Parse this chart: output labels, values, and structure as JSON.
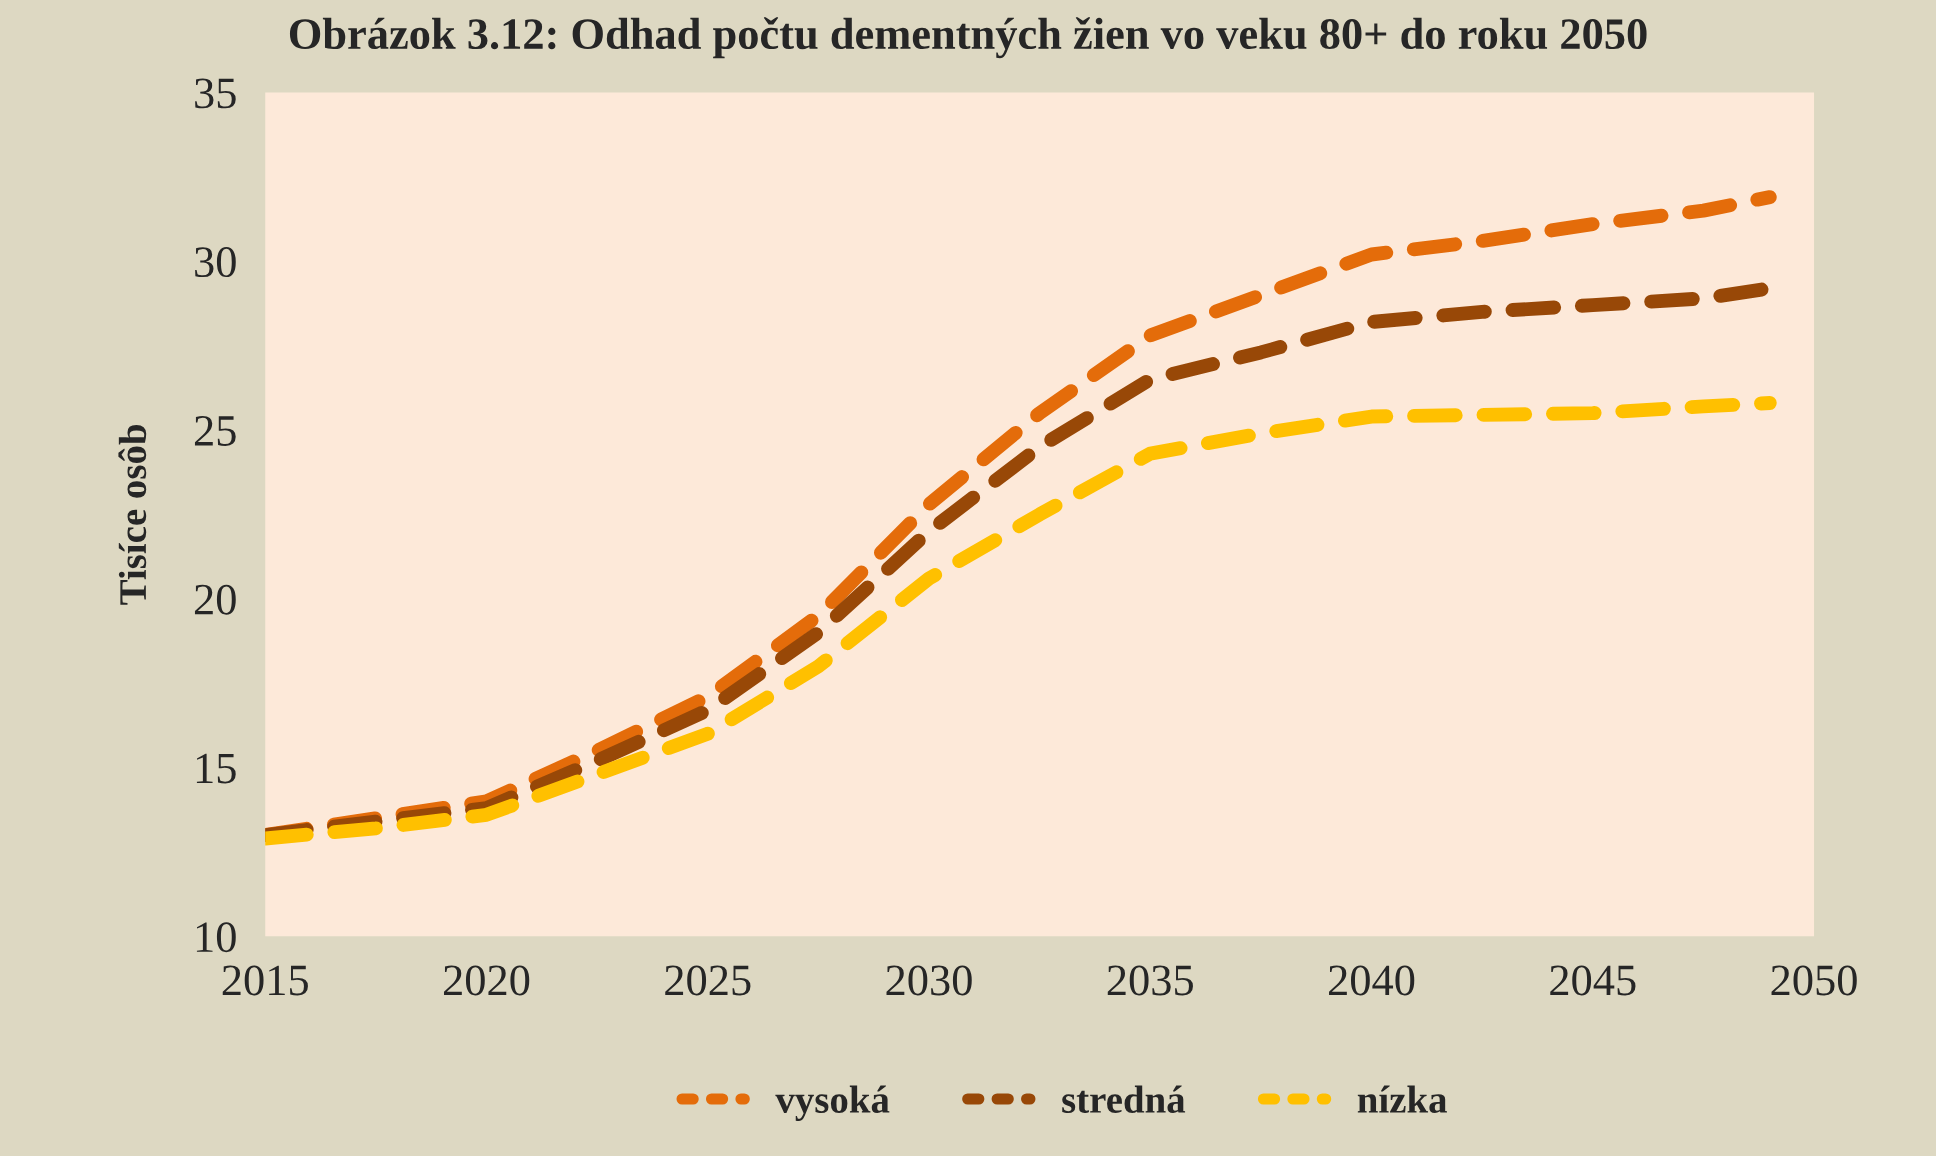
{
  "chart_data": {
    "type": "line",
    "title": "Obrázok 3.12: Odhad počtu dementných žien vo veku 80+ do roku 2050",
    "ylabel": "Tisíce osôb",
    "x": [
      2015,
      2017.5,
      2020,
      2022.5,
      2025,
      2027.5,
      2030,
      2032.5,
      2035,
      2037.5,
      2040,
      2042.5,
      2045,
      2047.5,
      2049
    ],
    "series": [
      {
        "name": "vysoká",
        "color": "#e46c0a",
        "values": [
          13.0,
          13.5,
          14.0,
          15.5,
          17.1,
          19.5,
          22.8,
          25.5,
          27.8,
          29.0,
          30.2,
          30.6,
          31.1,
          31.5,
          31.9
        ]
      },
      {
        "name": "stredná",
        "color": "#984807",
        "values": [
          13.0,
          13.4,
          13.8,
          15.2,
          16.7,
          19.0,
          22.0,
          24.5,
          26.5,
          27.3,
          28.2,
          28.5,
          28.7,
          28.9,
          29.2
        ]
      },
      {
        "name": "nízka",
        "color": "#ffc000",
        "values": [
          12.9,
          13.2,
          13.6,
          14.8,
          16.0,
          18.0,
          20.6,
          22.5,
          24.3,
          24.9,
          25.4,
          25.45,
          25.5,
          25.7,
          25.8
        ]
      }
    ],
    "xlim": [
      2015,
      2050
    ],
    "xticks": [
      2015,
      2020,
      2025,
      2030,
      2035,
      2040,
      2045,
      2050
    ],
    "ylim": [
      10,
      35
    ],
    "yticks": [
      10,
      15,
      20,
      25,
      30,
      35
    ],
    "grid": false,
    "legend": "bottom",
    "line_style": "dashed",
    "marker": "none"
  }
}
